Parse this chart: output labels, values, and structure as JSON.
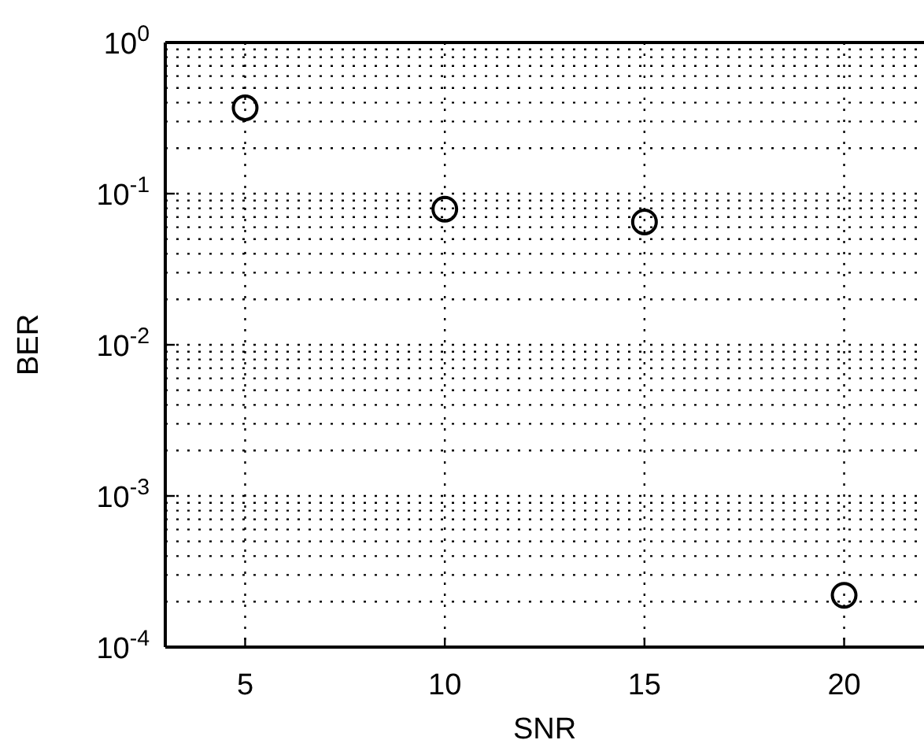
{
  "chart_data": {
    "type": "scatter",
    "xlabel": "SNR",
    "ylabel": "BER",
    "x": [
      5,
      10,
      15,
      20
    ],
    "series": [
      {
        "color": "#000000",
        "values": [
          0.37,
          0.079,
          0.065,
          0.00022
        ]
      }
    ],
    "xlim": [
      3,
      22
    ],
    "xticks": [
      5,
      10,
      15,
      20
    ],
    "ylim": [
      0.0001,
      1
    ],
    "yticks": [
      {
        "value": 1,
        "label": "10$^{0}$"
      },
      {
        "value": 0.1,
        "label": "10$^{-1}$"
      },
      {
        "value": 0.01,
        "label": "10$^{-2}$"
      },
      {
        "value": 0.001,
        "label": "10$^{-3}$"
      },
      {
        "value": 0.0001,
        "label": "10$^{-4}$"
      }
    ],
    "log": "y",
    "grid": true,
    "marker": "circle"
  }
}
